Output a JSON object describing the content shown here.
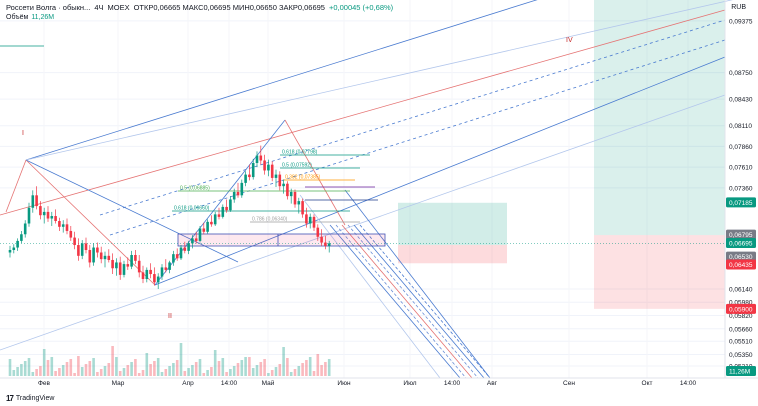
{
  "header": {
    "symbol": "Россети Волга · обыкн...",
    "interval": "4Ч",
    "exchange": "MOEX",
    "ohlc": "ОТКР0,06665  МАКС0,06695  МИН0,06650  ЗАКР0,06695",
    "change": "+0,00045 (+0,68%)"
  },
  "volume": {
    "label": "Объём",
    "value": "11,26M"
  },
  "currency": "RUB",
  "footer": {
    "brand": "TradingView"
  },
  "wave_labels": [
    "I",
    "II",
    "IV"
  ],
  "chart_data": {
    "type": "candlestick",
    "x_ticks": [
      "Фев",
      "Мар",
      "Апр",
      "14:00",
      "Май",
      "Июн",
      "Июл",
      "14:00",
      "Авг",
      "Сен",
      "Окт",
      "14:00"
    ],
    "y_ticks": [
      "0,09375",
      "0,08750",
      "0,08430",
      "0,08110",
      "0,07860",
      "0,07610",
      "0,07360",
      "0,06140",
      "0,05980",
      "0,05820",
      "0,05660",
      "0,05510",
      "0,05350",
      "0,05210"
    ],
    "ylim": [
      0.0509,
      0.0953
    ],
    "price_badges": [
      {
        "value": "0,07185",
        "color": "#089981"
      },
      {
        "value": "0,06795",
        "color": "#787b86"
      },
      {
        "value": "0,06695",
        "color": "#089981"
      },
      {
        "value": "0,06530",
        "color": "#787b86"
      },
      {
        "value": "0,06435",
        "color": "#f23645"
      },
      {
        "value": "0,05900",
        "color": "#f23645"
      },
      {
        "value": "11,26M",
        "color": "#089981"
      }
    ],
    "fib_labels": [
      "0.618 (0,07798)",
      "0.5 (0,07592)",
      "0.382 (0,07385)",
      "0.5 (0,06885)",
      "0.618 (0,06660)",
      "0.786 (0,06340)"
    ],
    "long_position": {
      "entry": 0.0667,
      "target": 0.0718,
      "stop": 0.0645
    },
    "long_position_right": {
      "entry": 0.0679,
      "target": 0.0953,
      "stop": 0.059
    },
    "candles": [
      [
        0.0658,
        0.0666,
        0.0652,
        0.0661
      ],
      [
        0.0661,
        0.0668,
        0.0657,
        0.0664
      ],
      [
        0.0664,
        0.0675,
        0.066,
        0.0672
      ],
      [
        0.0672,
        0.0684,
        0.0669,
        0.068
      ],
      [
        0.068,
        0.0697,
        0.0676,
        0.0693
      ],
      [
        0.0693,
        0.0718,
        0.0689,
        0.0712
      ],
      [
        0.0712,
        0.0733,
        0.0706,
        0.0727
      ],
      [
        0.0727,
        0.0738,
        0.071,
        0.0714
      ],
      [
        0.0714,
        0.072,
        0.0698,
        0.0703
      ],
      [
        0.0703,
        0.0712,
        0.0693,
        0.0707
      ],
      [
        0.0707,
        0.0714,
        0.0695,
        0.0699
      ],
      [
        0.0699,
        0.0707,
        0.069,
        0.0702
      ],
      [
        0.0702,
        0.071,
        0.0693,
        0.0696
      ],
      [
        0.0696,
        0.07,
        0.0684,
        0.0689
      ],
      [
        0.0689,
        0.0697,
        0.0682,
        0.0692
      ],
      [
        0.0692,
        0.0699,
        0.068,
        0.0684
      ],
      [
        0.0684,
        0.069,
        0.0672,
        0.0676
      ],
      [
        0.0676,
        0.0683,
        0.0662,
        0.0667
      ],
      [
        0.0667,
        0.0675,
        0.0648,
        0.0654
      ],
      [
        0.0654,
        0.0673,
        0.065,
        0.0669
      ],
      [
        0.0669,
        0.0676,
        0.0657,
        0.0661
      ],
      [
        0.0661,
        0.0667,
        0.064,
        0.0646
      ],
      [
        0.0646,
        0.0669,
        0.0642,
        0.0664
      ],
      [
        0.0664,
        0.067,
        0.0652,
        0.0658
      ],
      [
        0.0658,
        0.0665,
        0.0645,
        0.065
      ],
      [
        0.065,
        0.0659,
        0.064,
        0.0654
      ],
      [
        0.0654,
        0.0662,
        0.0646,
        0.0649
      ],
      [
        0.0649,
        0.0657,
        0.0632,
        0.0639
      ],
      [
        0.0639,
        0.0651,
        0.063,
        0.0646
      ],
      [
        0.0646,
        0.0653,
        0.0625,
        0.0631
      ],
      [
        0.0631,
        0.0648,
        0.0628,
        0.0644
      ],
      [
        0.0644,
        0.0652,
        0.0637,
        0.0641
      ],
      [
        0.0641,
        0.066,
        0.0638,
        0.0655
      ],
      [
        0.0655,
        0.0661,
        0.0644,
        0.0648
      ],
      [
        0.0648,
        0.0655,
        0.0628,
        0.0634
      ],
      [
        0.0634,
        0.0642,
        0.0621,
        0.0626
      ],
      [
        0.0626,
        0.064,
        0.0622,
        0.0637
      ],
      [
        0.0637,
        0.0645,
        0.0627,
        0.0632
      ],
      [
        0.0632,
        0.064,
        0.0618,
        0.0622
      ],
      [
        0.0622,
        0.0633,
        0.0614,
        0.0629
      ],
      [
        0.0629,
        0.0644,
        0.0625,
        0.064
      ],
      [
        0.064,
        0.065,
        0.0634,
        0.0637
      ],
      [
        0.0637,
        0.0648,
        0.0633,
        0.0646
      ],
      [
        0.0646,
        0.066,
        0.0642,
        0.0656
      ],
      [
        0.0656,
        0.0663,
        0.0648,
        0.0651
      ],
      [
        0.0651,
        0.0667,
        0.0649,
        0.0664
      ],
      [
        0.0664,
        0.0671,
        0.0657,
        0.066
      ],
      [
        0.066,
        0.0672,
        0.0656,
        0.0669
      ],
      [
        0.0669,
        0.0679,
        0.0663,
        0.0675
      ],
      [
        0.0675,
        0.0683,
        0.0669,
        0.0672
      ],
      [
        0.0672,
        0.069,
        0.067,
        0.0687
      ],
      [
        0.0687,
        0.0694,
        0.068,
        0.0683
      ],
      [
        0.0683,
        0.0698,
        0.0681,
        0.0695
      ],
      [
        0.0695,
        0.0703,
        0.0689,
        0.0692
      ],
      [
        0.0692,
        0.0707,
        0.069,
        0.0704
      ],
      [
        0.0704,
        0.0712,
        0.0698,
        0.0701
      ],
      [
        0.0701,
        0.0716,
        0.0699,
        0.0713
      ],
      [
        0.0713,
        0.0722,
        0.0706,
        0.0709
      ],
      [
        0.0709,
        0.0726,
        0.0707,
        0.0722
      ],
      [
        0.0722,
        0.0735,
        0.0718,
        0.0731
      ],
      [
        0.0731,
        0.0742,
        0.0724,
        0.0727
      ],
      [
        0.0727,
        0.0746,
        0.0724,
        0.0742
      ],
      [
        0.0742,
        0.0756,
        0.0738,
        0.0752
      ],
      [
        0.0752,
        0.0764,
        0.0745,
        0.0749
      ],
      [
        0.0749,
        0.0771,
        0.0746,
        0.0766
      ],
      [
        0.0766,
        0.078,
        0.0761,
        0.0775
      ],
      [
        0.0775,
        0.0787,
        0.0764,
        0.0769
      ],
      [
        0.0769,
        0.0776,
        0.0752,
        0.0757
      ],
      [
        0.0757,
        0.077,
        0.075,
        0.0764
      ],
      [
        0.0764,
        0.0768,
        0.0744,
        0.0748
      ],
      [
        0.0748,
        0.0758,
        0.0737,
        0.0752
      ],
      [
        0.0752,
        0.0756,
        0.0733,
        0.0738
      ],
      [
        0.0738,
        0.0746,
        0.0729,
        0.0741
      ],
      [
        0.0741,
        0.0744,
        0.0722,
        0.0726
      ],
      [
        0.0726,
        0.0735,
        0.0717,
        0.0731
      ],
      [
        0.0731,
        0.0734,
        0.0712,
        0.0716
      ],
      [
        0.0716,
        0.0724,
        0.0705,
        0.072
      ],
      [
        0.072,
        0.0723,
        0.07,
        0.0704
      ],
      [
        0.0704,
        0.0712,
        0.0688,
        0.0693
      ],
      [
        0.0693,
        0.0705,
        0.0687,
        0.0701
      ],
      [
        0.0701,
        0.0704,
        0.0684,
        0.0688
      ],
      [
        0.0688,
        0.0692,
        0.0672,
        0.0677
      ],
      [
        0.0677,
        0.0686,
        0.0666,
        0.067
      ],
      [
        0.067,
        0.0678,
        0.0662,
        0.0666
      ],
      [
        0.0666,
        0.0672,
        0.0658,
        0.0669
      ]
    ]
  }
}
